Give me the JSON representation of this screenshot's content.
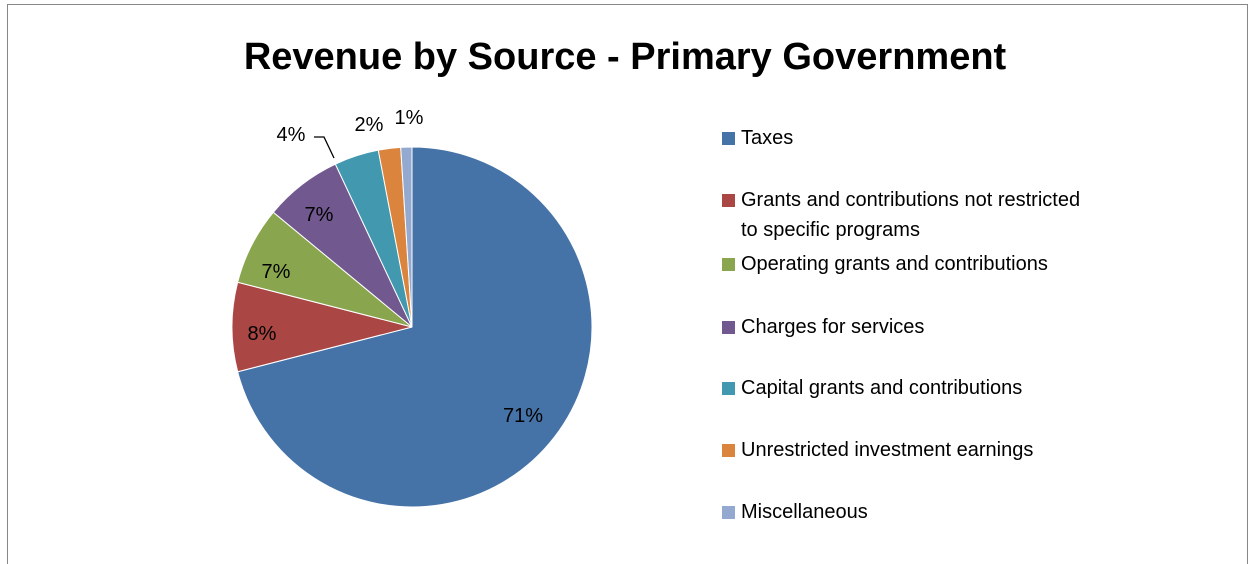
{
  "chart_data": {
    "type": "pie",
    "title": "Revenue by Source - Primary Government",
    "legend_position": "right",
    "slices": [
      {
        "name": "Taxes",
        "value": 71,
        "label": "71%",
        "color": "#4572A7"
      },
      {
        "name": "Grants and contributions not restricted to specific programs",
        "value": 8,
        "label": "8%",
        "color": "#AA4643"
      },
      {
        "name": "Operating grants and contributions",
        "value": 7,
        "label": "7%",
        "color": "#89A54E"
      },
      {
        "name": "Charges for services",
        "value": 7,
        "label": "7%",
        "color": "#71588F"
      },
      {
        "name": "Capital grants and contributions",
        "value": 4,
        "label": "4%",
        "color": "#4198AF"
      },
      {
        "name": "Unrestricted investment earnings",
        "value": 2,
        "label": "2%",
        "color": "#DB843D"
      },
      {
        "name": "Miscellaneous",
        "value": 1,
        "label": "1%",
        "color": "#93A9CF"
      }
    ]
  }
}
